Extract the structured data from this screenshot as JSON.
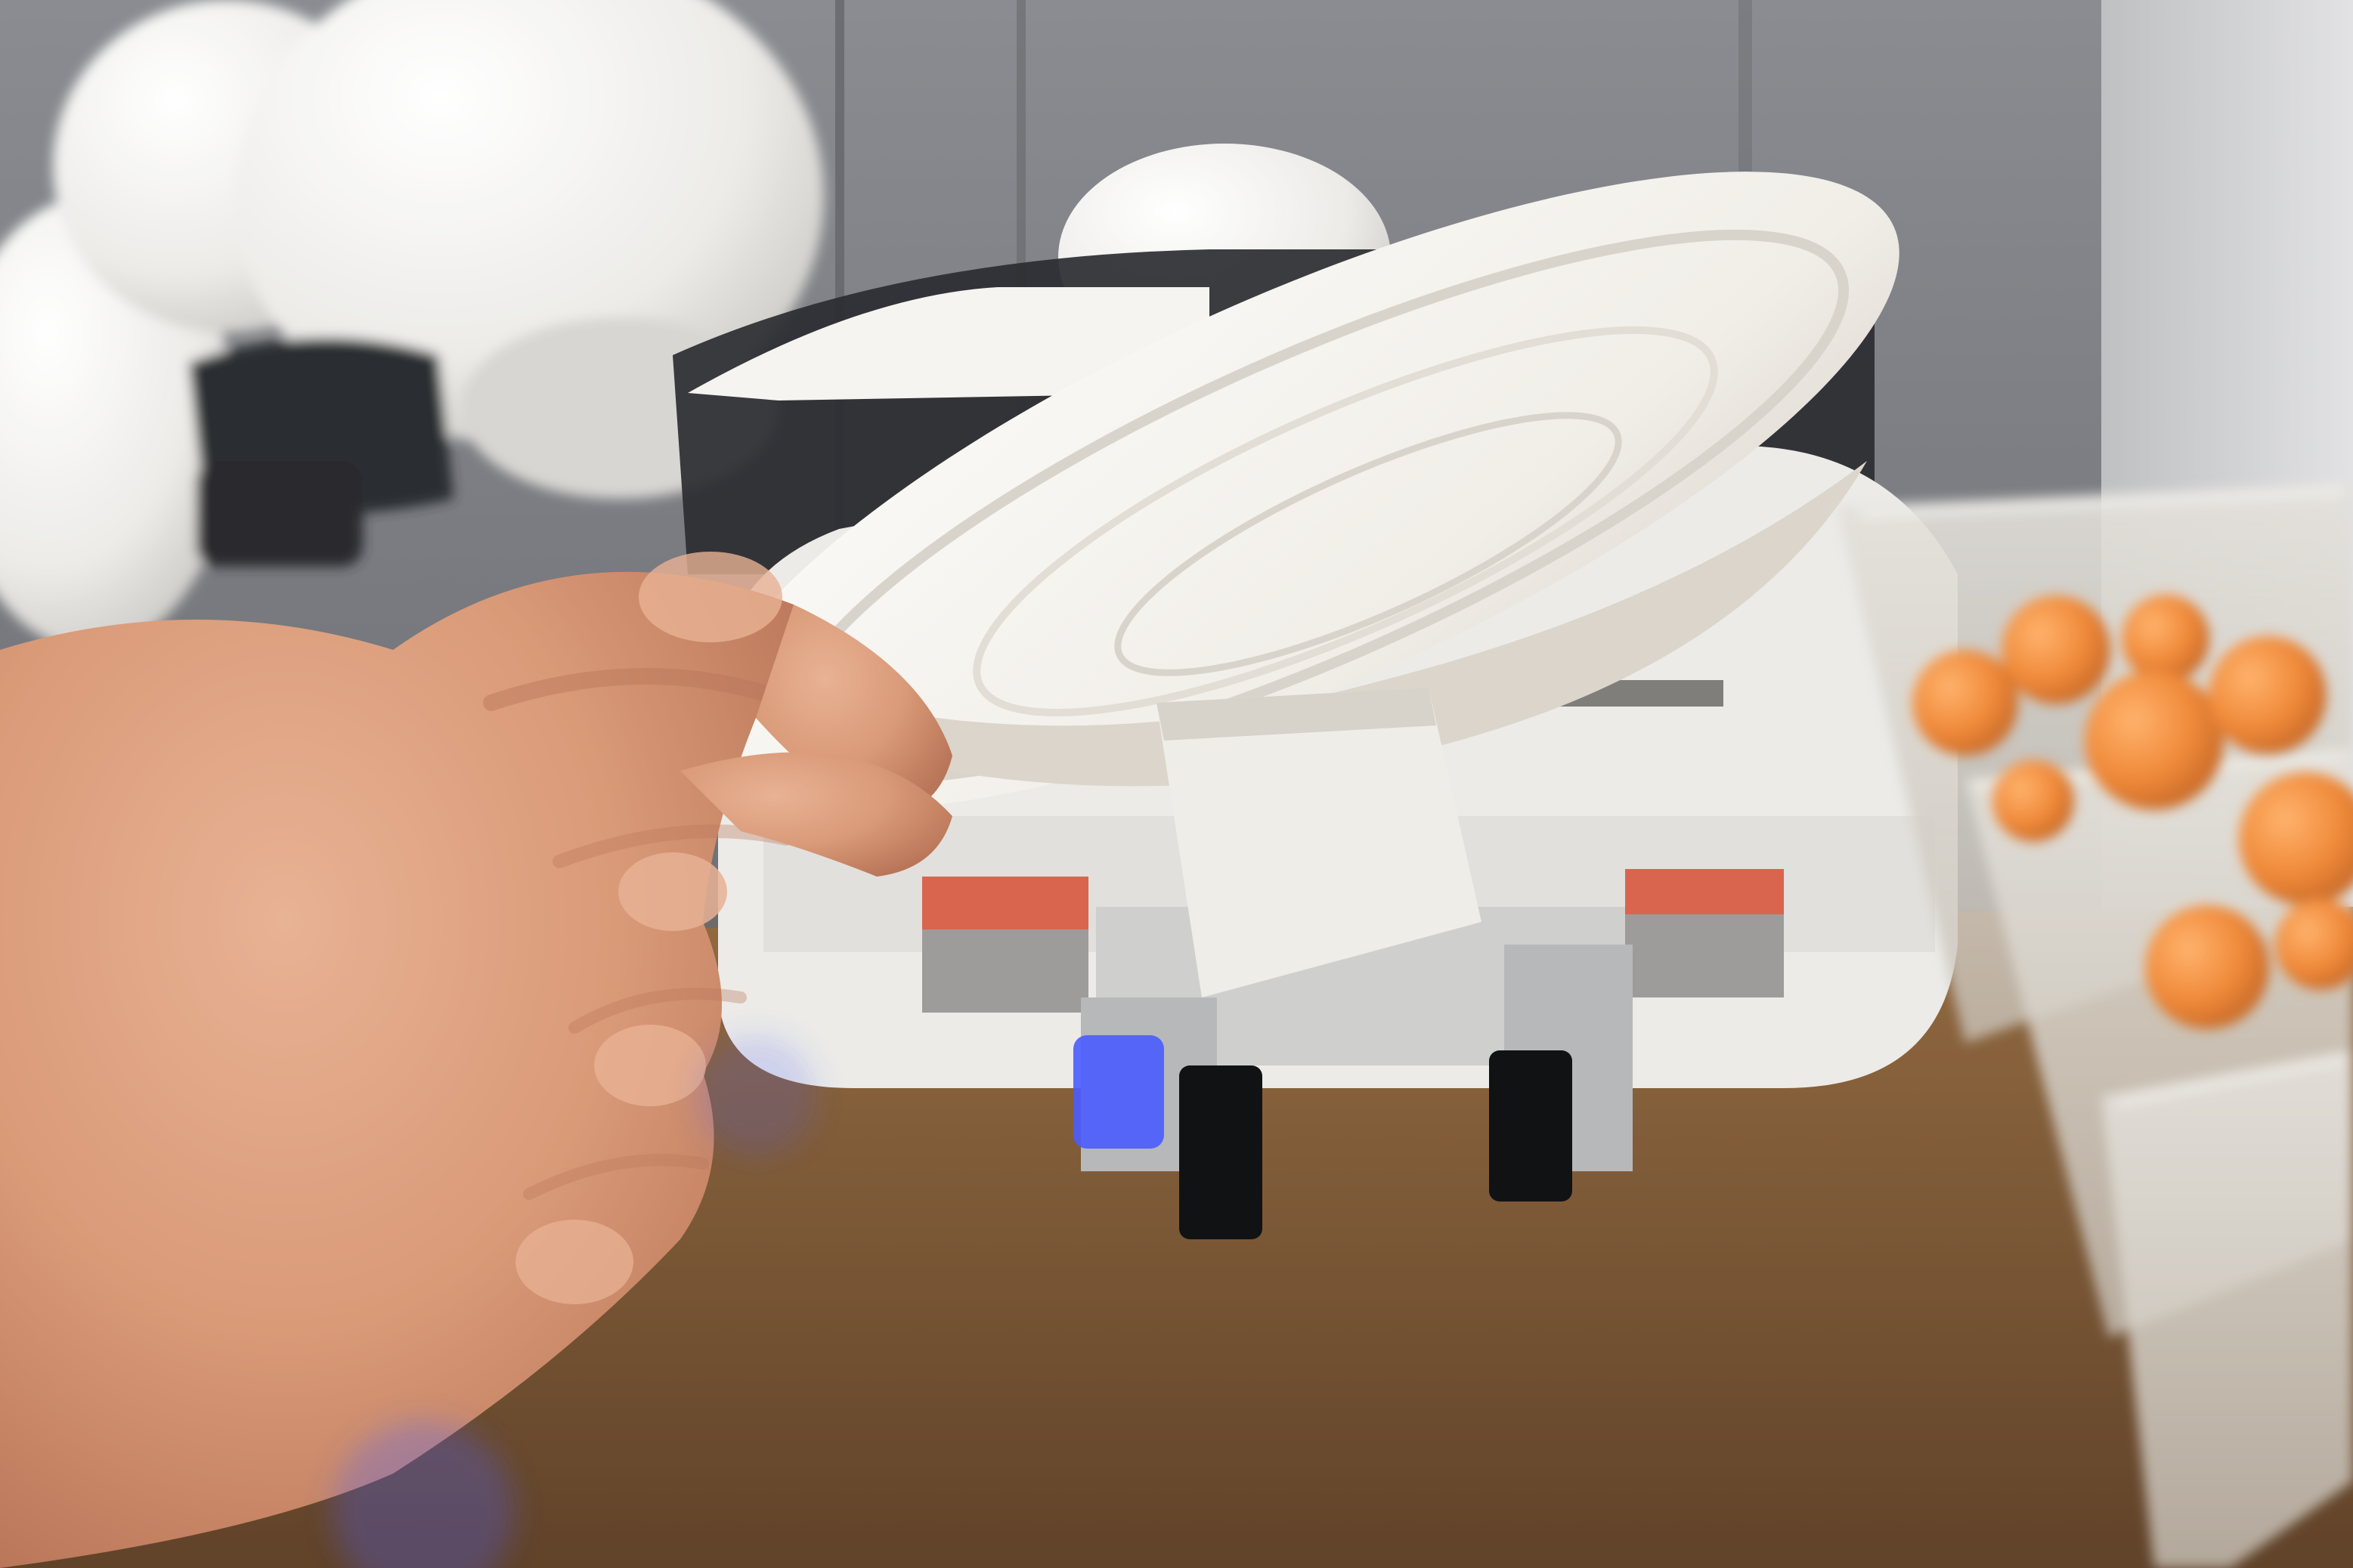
{
  "scene": {
    "palette": {
      "wall_gray": "#7f8186",
      "wall_dark": "#5c5f64",
      "right_wall": "#cfcfd1",
      "table_brown": "#7e5c38",
      "table_light": "#a07548",
      "robot_white": "#ecebe8",
      "robot_shadow": "#c8c6c2",
      "robot_dark": "#2b2d31",
      "plate_white": "#f3f1ec",
      "plate_shadow": "#d9d4cb",
      "skin_base": "#d99a78",
      "skin_light": "#e8b294",
      "skin_shadow": "#b97558",
      "ball_orange": "#f08a3a",
      "bin_clear": "#d7d2ca",
      "blue_light": "#4a5cff",
      "red_strip": "#d9654f",
      "black_finger": "#111214",
      "metal": "#b7b8ba"
    },
    "objects": [
      "robot-arm",
      "paper-plate",
      "hand",
      "storage-bins",
      "ping-pong-balls",
      "table-surface",
      "gray-wall"
    ]
  }
}
